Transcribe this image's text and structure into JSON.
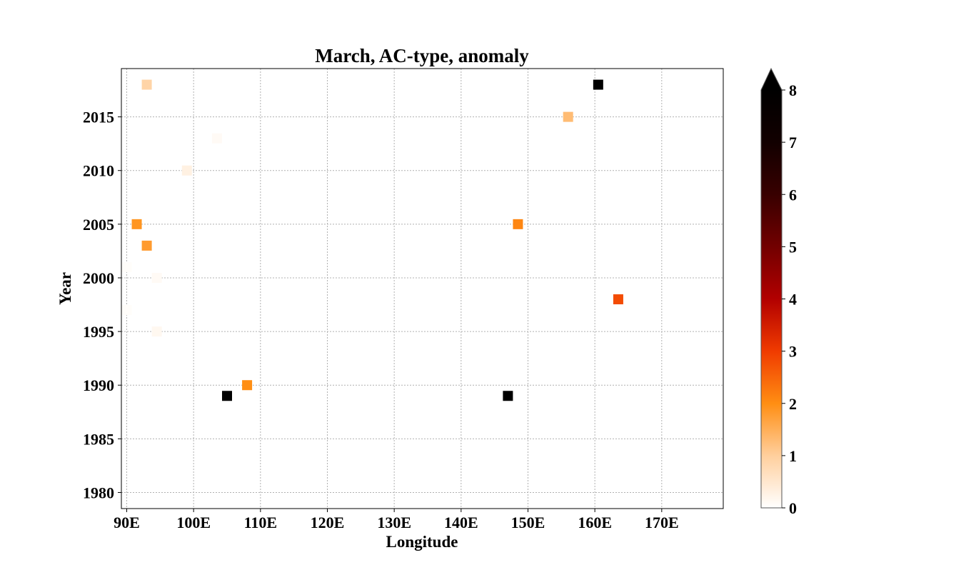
{
  "chart_data": {
    "type": "scatter",
    "title": "March, AC-type, anomaly",
    "xlabel": "Longitude",
    "ylabel": "Year",
    "xlim": [
      89.2,
      179.2
    ],
    "ylim": [
      1978.5,
      2019.5
    ],
    "x_ticks": [
      90,
      100,
      110,
      120,
      130,
      140,
      150,
      160,
      170
    ],
    "x_tick_labels": [
      "90E",
      "100E",
      "110E",
      "120E",
      "130E",
      "140E",
      "150E",
      "160E",
      "170E"
    ],
    "y_ticks": [
      1980,
      1985,
      1990,
      1995,
      2000,
      2005,
      2010,
      2015
    ],
    "y_tick_labels": [
      "1980",
      "1985",
      "1990",
      "1995",
      "2000",
      "2005",
      "2010",
      "2015"
    ],
    "grid": true,
    "marker": "square",
    "colorbar": {
      "min": 0,
      "max": 8,
      "extend": "max",
      "colormap": "gist_heat_r",
      "ticks": [
        0,
        1,
        2,
        3,
        4,
        5,
        6,
        7,
        8
      ],
      "tick_labels": [
        "0",
        "1",
        "2",
        "3",
        "4",
        "5",
        "6",
        "7",
        "8"
      ]
    },
    "points": [
      {
        "lon": 93.0,
        "year": 2018,
        "value": 0.9
      },
      {
        "lon": 160.5,
        "year": 2018,
        "value": 8.0
      },
      {
        "lon": 156.0,
        "year": 2015,
        "value": 1.3
      },
      {
        "lon": 103.5,
        "year": 2013,
        "value": 0.1
      },
      {
        "lon": 99.0,
        "year": 2010,
        "value": 0.3
      },
      {
        "lon": 91.5,
        "year": 2005,
        "value": 1.9
      },
      {
        "lon": 148.5,
        "year": 2005,
        "value": 2.1
      },
      {
        "lon": 93.0,
        "year": 2003,
        "value": 1.8
      },
      {
        "lon": 90.0,
        "year": 2001,
        "value": 0.05
      },
      {
        "lon": 94.5,
        "year": 2000,
        "value": 0.1
      },
      {
        "lon": 163.5,
        "year": 1998,
        "value": 2.8
      },
      {
        "lon": 90.0,
        "year": 1997,
        "value": 0.05
      },
      {
        "lon": 94.5,
        "year": 1995,
        "value": 0.15
      },
      {
        "lon": 108.0,
        "year": 1990,
        "value": 2.0
      },
      {
        "lon": 105.0,
        "year": 1989,
        "value": 8.0
      },
      {
        "lon": 147.0,
        "year": 1989,
        "value": 8.0
      }
    ]
  }
}
